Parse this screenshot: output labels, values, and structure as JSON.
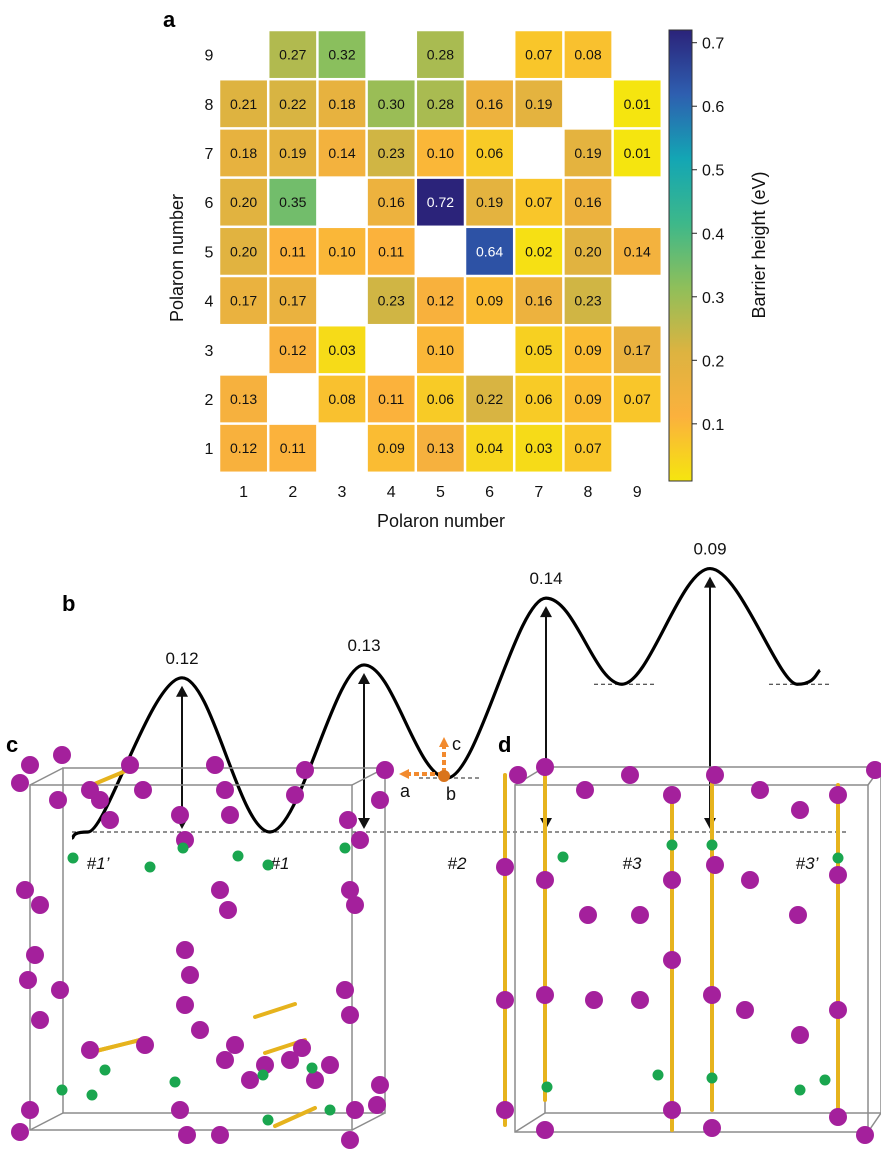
{
  "panels": {
    "a": "a",
    "b": "b",
    "c": "c",
    "d": "d"
  },
  "chart_data": [
    {
      "type": "heatmap",
      "xlabel": "Polaron number",
      "ylabel": "Polaron number",
      "x_ticks": [
        "1",
        "2",
        "3",
        "4",
        "5",
        "6",
        "7",
        "8",
        "9"
      ],
      "y_ticks": [
        "1",
        "2",
        "3",
        "4",
        "5",
        "6",
        "7",
        "8",
        "9"
      ],
      "colorbar": {
        "label": "Barrier height (eV)",
        "ticks": [
          "0.1",
          "0.2",
          "0.3",
          "0.4",
          "0.5",
          "0.6",
          "0.7"
        ],
        "range": [
          0.01,
          0.72
        ],
        "colormap": "viridis_r",
        "colors": [
          "#f5e50f",
          "#fbb13d",
          "#ddb340",
          "#8fbf5a",
          "#3db88a",
          "#13a6b4",
          "#2e5fb0",
          "#2b237a"
        ]
      },
      "cells": [
        {
          "row": 9,
          "col": 2,
          "value": "0.27"
        },
        {
          "row": 9,
          "col": 3,
          "value": "0.32"
        },
        {
          "row": 9,
          "col": 5,
          "value": "0.28"
        },
        {
          "row": 9,
          "col": 7,
          "value": "0.07"
        },
        {
          "row": 9,
          "col": 8,
          "value": "0.08"
        },
        {
          "row": 8,
          "col": 1,
          "value": "0.21"
        },
        {
          "row": 8,
          "col": 2,
          "value": "0.22"
        },
        {
          "row": 8,
          "col": 3,
          "value": "0.18"
        },
        {
          "row": 8,
          "col": 4,
          "value": "0.30"
        },
        {
          "row": 8,
          "col": 5,
          "value": "0.28"
        },
        {
          "row": 8,
          "col": 6,
          "value": "0.16"
        },
        {
          "row": 8,
          "col": 7,
          "value": "0.19"
        },
        {
          "row": 8,
          "col": 9,
          "value": "0.01"
        },
        {
          "row": 7,
          "col": 1,
          "value": "0.18"
        },
        {
          "row": 7,
          "col": 2,
          "value": "0.19"
        },
        {
          "row": 7,
          "col": 3,
          "value": "0.14"
        },
        {
          "row": 7,
          "col": 4,
          "value": "0.23"
        },
        {
          "row": 7,
          "col": 5,
          "value": "0.10"
        },
        {
          "row": 7,
          "col": 6,
          "value": "0.06"
        },
        {
          "row": 7,
          "col": 8,
          "value": "0.19"
        },
        {
          "row": 7,
          "col": 9,
          "value": "0.01"
        },
        {
          "row": 6,
          "col": 1,
          "value": "0.20"
        },
        {
          "row": 6,
          "col": 2,
          "value": "0.35"
        },
        {
          "row": 6,
          "col": 4,
          "value": "0.16"
        },
        {
          "row": 6,
          "col": 5,
          "value": "0.72"
        },
        {
          "row": 6,
          "col": 6,
          "value": "0.19"
        },
        {
          "row": 6,
          "col": 7,
          "value": "0.07"
        },
        {
          "row": 6,
          "col": 8,
          "value": "0.16"
        },
        {
          "row": 5,
          "col": 1,
          "value": "0.20"
        },
        {
          "row": 5,
          "col": 2,
          "value": "0.11"
        },
        {
          "row": 5,
          "col": 3,
          "value": "0.10"
        },
        {
          "row": 5,
          "col": 4,
          "value": "0.11"
        },
        {
          "row": 5,
          "col": 6,
          "value": "0.64"
        },
        {
          "row": 5,
          "col": 7,
          "value": "0.02"
        },
        {
          "row": 5,
          "col": 8,
          "value": "0.20"
        },
        {
          "row": 5,
          "col": 9,
          "value": "0.14"
        },
        {
          "row": 4,
          "col": 1,
          "value": "0.17"
        },
        {
          "row": 4,
          "col": 2,
          "value": "0.17"
        },
        {
          "row": 4,
          "col": 4,
          "value": "0.23"
        },
        {
          "row": 4,
          "col": 5,
          "value": "0.12"
        },
        {
          "row": 4,
          "col": 6,
          "value": "0.09"
        },
        {
          "row": 4,
          "col": 7,
          "value": "0.16"
        },
        {
          "row": 4,
          "col": 8,
          "value": "0.23"
        },
        {
          "row": 3,
          "col": 2,
          "value": "0.12"
        },
        {
          "row": 3,
          "col": 3,
          "value": "0.03"
        },
        {
          "row": 3,
          "col": 5,
          "value": "0.10"
        },
        {
          "row": 3,
          "col": 7,
          "value": "0.05"
        },
        {
          "row": 3,
          "col": 8,
          "value": "0.09"
        },
        {
          "row": 3,
          "col": 9,
          "value": "0.17"
        },
        {
          "row": 2,
          "col": 1,
          "value": "0.13"
        },
        {
          "row": 2,
          "col": 3,
          "value": "0.08"
        },
        {
          "row": 2,
          "col": 4,
          "value": "0.11"
        },
        {
          "row": 2,
          "col": 5,
          "value": "0.06"
        },
        {
          "row": 2,
          "col": 6,
          "value": "0.22"
        },
        {
          "row": 2,
          "col": 7,
          "value": "0.06"
        },
        {
          "row": 2,
          "col": 8,
          "value": "0.09"
        },
        {
          "row": 2,
          "col": 9,
          "value": "0.07"
        },
        {
          "row": 1,
          "col": 1,
          "value": "0.12"
        },
        {
          "row": 1,
          "col": 2,
          "value": "0.11"
        },
        {
          "row": 1,
          "col": 4,
          "value": "0.09"
        },
        {
          "row": 1,
          "col": 5,
          "value": "0.13"
        },
        {
          "row": 1,
          "col": 6,
          "value": "0.04"
        },
        {
          "row": 1,
          "col": 7,
          "value": "0.03"
        },
        {
          "row": 1,
          "col": 8,
          "value": "0.07"
        }
      ]
    },
    {
      "type": "line",
      "states": [
        "#1’",
        "#1",
        "#2",
        "#3",
        "#3’"
      ],
      "state_energies": [
        0,
        0,
        0.042,
        0.115,
        0.115
      ],
      "barriers": [
        {
          "label": "0.12",
          "from_state": 0,
          "value": 0.12
        },
        {
          "label": "0.13",
          "from_state": 1,
          "value": 0.13
        },
        {
          "label": "0.14",
          "from_state": 2,
          "value": 0.14
        },
        {
          "label": "0.09",
          "from_state": 3,
          "value": 0.09
        }
      ]
    }
  ],
  "structures": {
    "axes": {
      "a": "a",
      "b": "b",
      "c": "c"
    },
    "atom_colors": {
      "large": "#a4209c",
      "small": "#1aa64f",
      "bond": "#e6b31d",
      "cell": "#8c8c8c"
    }
  }
}
